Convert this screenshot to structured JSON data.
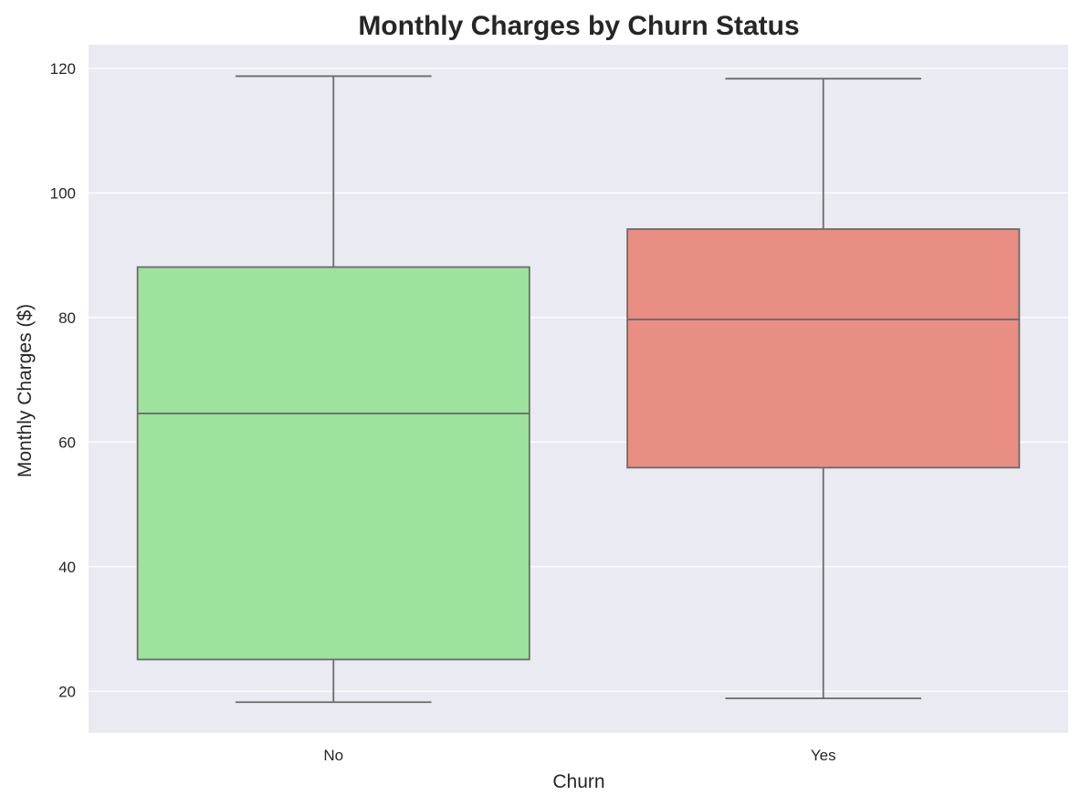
{
  "chart_data": {
    "type": "box",
    "title": "Monthly Charges by Churn Status",
    "xlabel": "Churn",
    "ylabel": "Monthly Charges ($)",
    "categories": [
      "No",
      "Yes"
    ],
    "ylim": [
      13.3,
      123.8
    ],
    "yticks": [
      20,
      40,
      60,
      80,
      100,
      120
    ],
    "grid": true,
    "colors": {
      "background": "#eaeaf2",
      "grid": "#ffffff",
      "box_line": "#6b6b6b",
      "No": "#9de29d",
      "Yes": "#e88e83"
    },
    "boxes": [
      {
        "category": "No",
        "whisker_low": 18.25,
        "q1": 25.1,
        "median": 64.6,
        "q3": 88.1,
        "whisker_high": 118.75
      },
      {
        "category": "Yes",
        "whisker_low": 18.85,
        "q1": 55.9,
        "median": 79.7,
        "q3": 94.2,
        "whisker_high": 118.35
      }
    ]
  }
}
